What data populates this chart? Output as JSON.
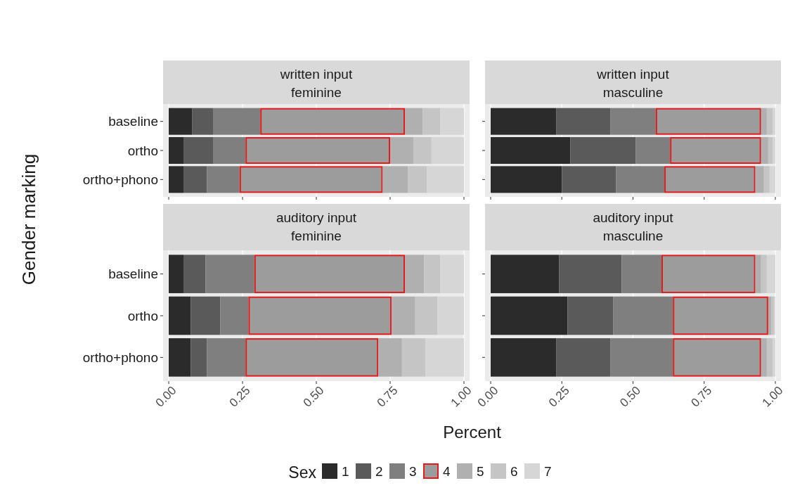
{
  "chart_data": [
    {
      "type": "bar",
      "orientation": "horizontal",
      "stacked": true,
      "title": "written input",
      "subtitle": "feminine",
      "ylabel": "Gender marking",
      "xlabel": "Percent",
      "legend_title": "Sex",
      "legend": "bottom",
      "grid": "x",
      "tick_labels": "y",
      "categories": [
        "baseline",
        "ortho",
        "ortho+phono"
      ],
      "xlim": [
        0,
        1
      ],
      "xticks": [
        {
          "value": 0,
          "label": null
        },
        {
          "value": 0.25,
          "label": null
        },
        {
          "value": 0.5,
          "label": null
        },
        {
          "value": 0.75,
          "label": null
        },
        {
          "value": 1,
          "label": null
        }
      ],
      "series": [
        {
          "name": "1",
          "color": "#2b2b2b",
          "values": [
            0.08,
            0.05,
            0.05
          ]
        },
        {
          "name": "2",
          "color": "#5a5a5a",
          "values": [
            0.07,
            0.1,
            0.08
          ]
        },
        {
          "name": "3",
          "color": "#7f7f7f",
          "values": [
            0.16,
            0.11,
            0.11
          ]
        },
        {
          "name": "4",
          "color": "#9c9c9c",
          "values": [
            0.49,
            0.49,
            0.485
          ]
        },
        {
          "name": "5",
          "color": "#b0b0b0",
          "values": [
            0.06,
            0.08,
            0.085
          ]
        },
        {
          "name": "6",
          "color": "#c5c5c5",
          "values": [
            0.06,
            0.06,
            0.065
          ]
        },
        {
          "name": "7",
          "color": "#d6d6d6",
          "values": [
            0.08,
            0.11,
            0.125
          ]
        }
      ]
    },
    {
      "type": "bar",
      "orientation": "horizontal",
      "stacked": true,
      "title": "written input",
      "subtitle": "masculine",
      "grid": "x",
      "tick_labels": false,
      "categories": [
        null,
        null,
        null
      ],
      "xlim": [
        0,
        1
      ],
      "xticks": [
        {
          "value": 0,
          "label": null
        },
        {
          "value": 0.25,
          "label": null
        },
        {
          "value": 0.5,
          "label": null
        },
        {
          "value": 0.75,
          "label": null
        },
        {
          "value": 1,
          "label": null
        }
      ],
      "series": [
        {
          "color": "#2b2b2b",
          "values": [
            0.23,
            0.28,
            0.25
          ]
        },
        {
          "color": "#5a5a5a",
          "values": [
            0.19,
            0.23,
            0.19
          ]
        },
        {
          "color": "#7f7f7f",
          "values": [
            0.16,
            0.12,
            0.17
          ]
        },
        {
          "color": "#9c9c9c",
          "values": [
            0.37,
            0.32,
            0.32
          ]
        },
        {
          "color": "#b0b0b0",
          "values": [
            0.02,
            0.025,
            0.03
          ]
        },
        {
          "color": "#c5c5c5",
          "values": [
            0.02,
            0.015,
            0.02
          ]
        },
        {
          "color": "#d6d6d6",
          "values": [
            0.01,
            0.01,
            0.02
          ]
        }
      ]
    },
    {
      "type": "bar",
      "orientation": "horizontal",
      "stacked": true,
      "title": "auditory input",
      "subtitle": "feminine",
      "grid": "x",
      "categories": [
        "baseline",
        "ortho",
        "ortho+phono"
      ],
      "xlim": [
        0,
        1
      ],
      "xticks": [
        {
          "value": 0,
          "label": "0.00"
        },
        {
          "value": 0.25,
          "label": "0.25"
        },
        {
          "value": 0.5,
          "label": "0.50"
        },
        {
          "value": 0.75,
          "label": "0.75"
        },
        {
          "value": 1,
          "label": "1.00"
        }
      ],
      "series": [
        {
          "color": "#2b2b2b",
          "values": [
            0.05,
            0.075,
            0.075
          ]
        },
        {
          "color": "#5a5a5a",
          "values": [
            0.075,
            0.1,
            0.055
          ]
        },
        {
          "color": "#7f7f7f",
          "values": [
            0.165,
            0.095,
            0.13
          ]
        },
        {
          "color": "#9c9c9c",
          "values": [
            0.51,
            0.485,
            0.45
          ]
        },
        {
          "color": "#b0b0b0",
          "values": [
            0.065,
            0.08,
            0.08
          ]
        },
        {
          "color": "#c5c5c5",
          "values": [
            0.055,
            0.075,
            0.08
          ]
        },
        {
          "color": "#d6d6d6",
          "values": [
            0.08,
            0.09,
            0.13
          ]
        }
      ]
    },
    {
      "type": "bar",
      "orientation": "horizontal",
      "stacked": true,
      "title": "auditory input",
      "subtitle": "masculine",
      "grid": "x",
      "tick_labels": "x",
      "categories": [
        null,
        null,
        null
      ],
      "xlim": [
        0,
        1
      ],
      "xticks": [
        {
          "value": 0,
          "label": "0.00"
        },
        {
          "value": 0.25,
          "label": "0.25"
        },
        {
          "value": 0.5,
          "label": "0.50"
        },
        {
          "value": 0.75,
          "label": "0.75"
        },
        {
          "value": 1,
          "label": "1.00"
        }
      ],
      "series": [
        {
          "color": "#2b2b2b",
          "values": [
            0.24,
            0.27,
            0.23
          ]
        },
        {
          "color": "#5a5a5a",
          "values": [
            0.22,
            0.16,
            0.19
          ]
        },
        {
          "color": "#7f7f7f",
          "values": [
            0.14,
            0.21,
            0.22
          ]
        },
        {
          "color": "#9c9c9c",
          "values": [
            0.33,
            0.335,
            0.31
          ]
        },
        {
          "color": "#b0b0b0",
          "values": [
            0.02,
            0.01,
            0.02
          ]
        },
        {
          "color": "#c5c5c5",
          "values": [
            0.02,
            0.01,
            0.02
          ]
        },
        {
          "color": "#d6d6d6",
          "values": [
            0.03,
            0.005,
            0.01
          ]
        }
      ]
    }
  ]
}
